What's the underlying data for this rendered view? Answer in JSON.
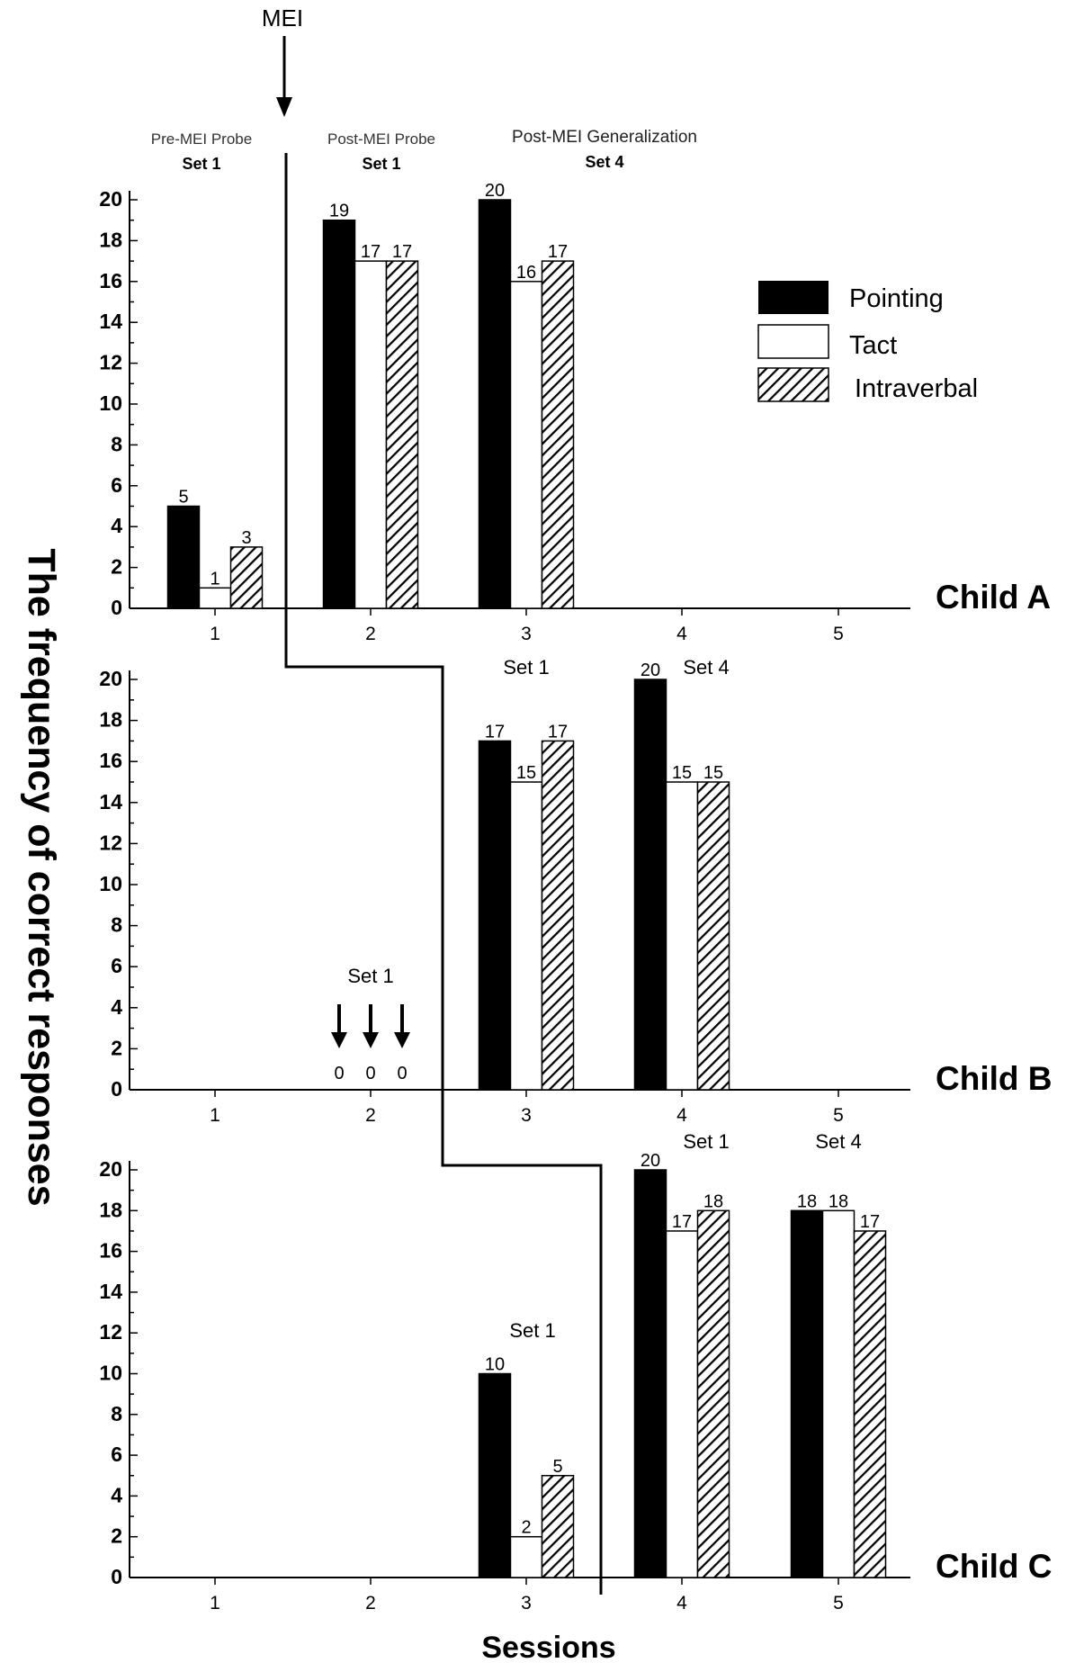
{
  "chart_data": {
    "type": "bar",
    "ylabel": "The frequency of correct responses",
    "xlabel": "Sessions",
    "ylim": [
      0,
      20
    ],
    "y_ticks": [
      "0",
      "2",
      "4",
      "6",
      "8",
      "10",
      "12",
      "14",
      "16",
      "18",
      "20"
    ],
    "categories": [
      "1",
      "2",
      "3",
      "4",
      "5"
    ],
    "legend": {
      "position": "top-right of Child A panel",
      "entries": [
        {
          "name": "Pointing",
          "fill": "solid-black"
        },
        {
          "name": "Tact",
          "fill": "white"
        },
        {
          "name": "Intraverbal",
          "fill": "diagonal-hatch"
        }
      ]
    },
    "phase_line_label": "MEI",
    "panels": [
      {
        "label": "Child A",
        "sessions": [
          {
            "session": "1",
            "values": [
              5,
              1,
              3
            ]
          },
          {
            "session": "2",
            "values": [
              19,
              17,
              17
            ]
          },
          {
            "session": "3",
            "values": [
              20,
              16,
              17
            ]
          }
        ],
        "annotations": [
          {
            "at": "1",
            "lines": [
              "Pre-MEI Probe",
              "Set 1"
            ]
          },
          {
            "at": "2",
            "lines": [
              "Post-MEI Probe",
              "Set 1"
            ]
          },
          {
            "at": "3",
            "lines": [
              "Post-MEI  Generalization",
              "Set 4"
            ]
          }
        ]
      },
      {
        "label": "Child B",
        "sessions": [
          {
            "session": "2",
            "values": [
              0,
              0,
              0
            ]
          },
          {
            "session": "3",
            "values": [
              17,
              15,
              17
            ]
          },
          {
            "session": "4",
            "values": [
              20,
              15,
              15
            ]
          }
        ],
        "annotations": [
          {
            "at": "2",
            "lines": [
              "Set 1"
            ]
          },
          {
            "at": "3",
            "lines": [
              "Set 1"
            ]
          },
          {
            "at": "4",
            "lines": [
              "Set 4"
            ]
          }
        ]
      },
      {
        "label": "Child C",
        "sessions": [
          {
            "session": "3",
            "values": [
              10,
              2,
              5
            ]
          },
          {
            "session": "4",
            "values": [
              20,
              17,
              18
            ]
          },
          {
            "session": "5",
            "values": [
              18,
              18,
              17
            ]
          }
        ],
        "annotations": [
          {
            "at": "3",
            "lines": [
              "Set 1"
            ]
          },
          {
            "at": "4",
            "lines": [
              "Set 1"
            ]
          },
          {
            "at": "5",
            "lines": [
              "Set 4"
            ]
          }
        ]
      }
    ]
  }
}
